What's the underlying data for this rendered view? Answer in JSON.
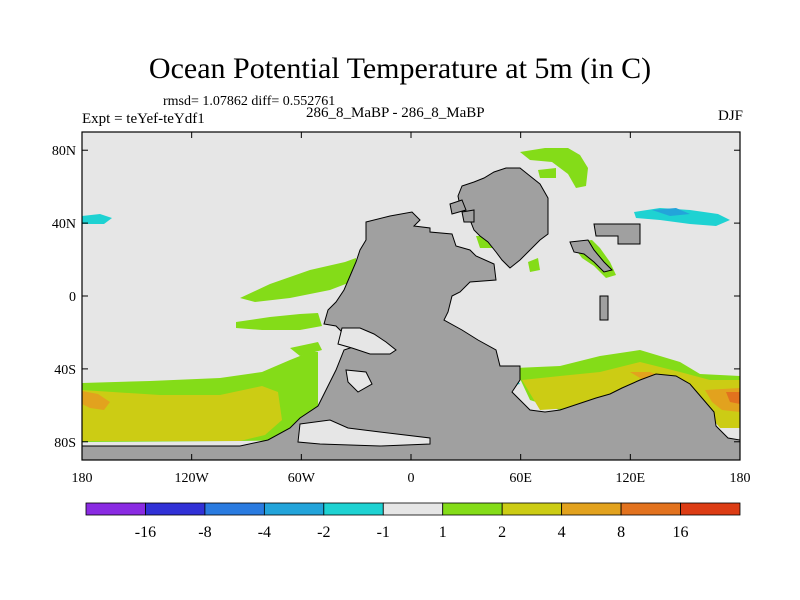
{
  "chart_data": {
    "type": "heatmap",
    "title": "Ocean Potential Temperature at 5m (in C)",
    "stats_text": "rmsd= 1.07862 diff= 0.552761",
    "left_label": "Expt = teYef-teYdf1",
    "center_label": "286_8_MaBP - 286_8_MaBP",
    "right_label": "DJF",
    "x_axis": {
      "range": [
        -180,
        180
      ],
      "ticks": [
        -180,
        -120,
        -60,
        0,
        60,
        120,
        180
      ],
      "tick_labels": [
        "180",
        "120W",
        "60W",
        "0",
        "60E",
        "120E",
        "180"
      ]
    },
    "y_axis": {
      "range": [
        -90,
        90
      ],
      "ticks": [
        80,
        40,
        0,
        -40,
        -80
      ],
      "tick_labels": [
        "80N",
        "40N",
        "0",
        "40S",
        "80S"
      ]
    },
    "colorbar": {
      "labels": [
        "-16",
        "-8",
        "-4",
        "-2",
        "-1",
        "1",
        "2",
        "4",
        "8",
        "16"
      ],
      "colors": [
        "#8a2be2",
        "#3131d6",
        "#2a7be0",
        "#23a4da",
        "#1ed2d2",
        "#e6e6e6",
        "#84dc18",
        "#cccc14",
        "#e2a21e",
        "#e2721e",
        "#dc3c14"
      ]
    },
    "colors": {
      "background_zero": "#e6e6e6",
      "land": "#a0a0a0"
    }
  }
}
